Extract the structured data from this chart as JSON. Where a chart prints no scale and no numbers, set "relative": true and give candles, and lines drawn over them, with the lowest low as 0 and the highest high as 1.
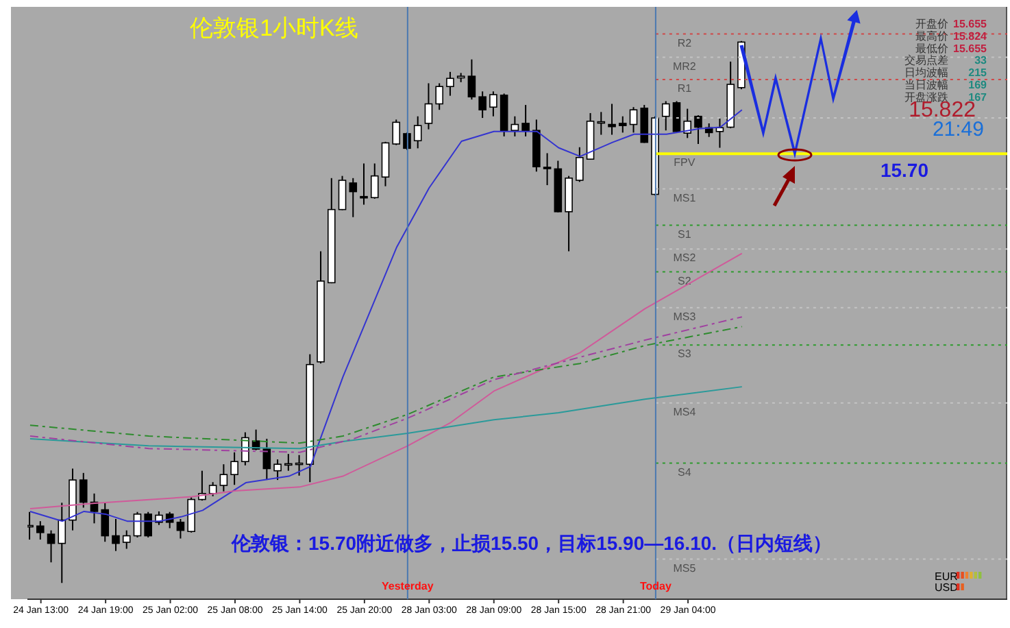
{
  "chart_data": {
    "type": "candlestick",
    "relative": true,
    "title": "伦敦银1小时K线",
    "categories": [
      null,
      "24 Jan 13:00",
      null,
      null,
      null,
      null,
      null,
      "24 Jan 19:00",
      null,
      null,
      null,
      null,
      null,
      "25 Jan 02:00",
      null,
      null,
      null,
      null,
      null,
      "25 Jan 08:00",
      null,
      null,
      null,
      null,
      null,
      "25 Jan 14:00",
      null,
      null,
      null,
      null,
      null,
      "25 Jan 20:00",
      null,
      null,
      null,
      null,
      null,
      "28 Jan 03:00",
      null,
      null,
      null,
      null,
      null,
      "28 Jan 09:00",
      null,
      null,
      null,
      null,
      null,
      "28 Jan 15:00",
      null,
      null,
      null,
      null,
      null,
      "28 Jan 21:00",
      null,
      null,
      null,
      null,
      null,
      "29 Jan 04:00",
      null,
      null,
      null,
      null,
      null
    ],
    "ohlc": [
      [
        0.105,
        0.131,
        0.08,
        0.106
      ],
      [
        0.105,
        0.114,
        0.08,
        0.093
      ],
      [
        0.09,
        0.097,
        0.038,
        0.073
      ],
      [
        0.073,
        0.148,
        0,
        0.116
      ],
      [
        0.116,
        0.211,
        0.097,
        0.19
      ],
      [
        0.19,
        0.203,
        0.139,
        0.149
      ],
      [
        0.149,
        0.165,
        0.11,
        0.132
      ],
      [
        0.135,
        0.148,
        0.076,
        0.087
      ],
      [
        0.087,
        0.118,
        0.059,
        0.073
      ],
      [
        0.075,
        0.097,
        0.063,
        0.087
      ],
      [
        0.087,
        0.131,
        0.084,
        0.127
      ],
      [
        0.127,
        0.131,
        0.084,
        0.087
      ],
      [
        0.112,
        0.132,
        0.107,
        0.125
      ],
      [
        0.127,
        0.131,
        0.101,
        0.112
      ],
      [
        0.112,
        0.118,
        0.082,
        0.097
      ],
      [
        0.095,
        0.158,
        0.093,
        0.154
      ],
      [
        0.154,
        0.207,
        0.152,
        0.165
      ],
      [
        0.165,
        0.186,
        0.16,
        0.18
      ],
      [
        0.18,
        0.219,
        0.169,
        0.2
      ],
      [
        0.2,
        0.241,
        0.181,
        0.224
      ],
      [
        0.224,
        0.278,
        0.217,
        0.268
      ],
      [
        0.262,
        0.283,
        0.245,
        0.247
      ],
      [
        0.247,
        0.266,
        0.19,
        0.211
      ],
      [
        0.207,
        0.228,
        0.19,
        0.219
      ],
      [
        0.219,
        0.238,
        0.207,
        0.22
      ],
      [
        0.219,
        0.236,
        0.198,
        0.221
      ],
      [
        0.219,
        0.422,
        0.186,
        0.403
      ],
      [
        0.408,
        0.612,
        0.405,
        0.557
      ],
      [
        0.554,
        0.747,
        0.553,
        0.689
      ],
      [
        0.689,
        0.751,
        0.688,
        0.743
      ],
      [
        0.738,
        0.747,
        0.675,
        0.722
      ],
      [
        0.713,
        0.774,
        0.698,
        0.711
      ],
      [
        0.711,
        0.774,
        0.709,
        0.751
      ],
      [
        0.749,
        0.814,
        0.732,
        0.812
      ],
      [
        0.81,
        0.855,
        0.808,
        0.85
      ],
      [
        0.829,
        0.831,
        0.799,
        0.802
      ],
      [
        0.816,
        0.861,
        0.802,
        0.844
      ],
      [
        0.848,
        0.922,
        0.837,
        0.884
      ],
      [
        0.884,
        0.922,
        0.873,
        0.916
      ],
      [
        0.916,
        0.943,
        0.899,
        0.931
      ],
      [
        0.932,
        0.941,
        0.924,
        0.935
      ],
      [
        0.935,
        0.966,
        0.892,
        0.897
      ],
      [
        0.897,
        0.907,
        0.858,
        0.873
      ],
      [
        0.878,
        0.907,
        0.861,
        0.901
      ],
      [
        0.9,
        0.903,
        0.824,
        0.835
      ],
      [
        0.835,
        0.861,
        0.824,
        0.846
      ],
      [
        0.848,
        0.882,
        0.824,
        0.835
      ],
      [
        0.835,
        0.855,
        0.759,
        0.768
      ],
      [
        0.767,
        0.793,
        0.734,
        0.765
      ],
      [
        0.764,
        0.779,
        0.684,
        0.685
      ],
      [
        0.685,
        0.751,
        0.612,
        0.747
      ],
      [
        0.743,
        0.804,
        0.74,
        0.785
      ],
      [
        0.782,
        0.867,
        0.781,
        0.852
      ],
      [
        0.85,
        0.869,
        0.827,
        0.851
      ],
      [
        0.846,
        0.884,
        0.827,
        0.842
      ],
      [
        0.848,
        0.861,
        0.831,
        0.844
      ],
      [
        0.846,
        0.878,
        0.831,
        0.873
      ],
      [
        0.876,
        0.882,
        0.812,
        0.813
      ],
      [
        0.717,
        0.861,
        0.715,
        0.858
      ],
      [
        0.861,
        0.889,
        0.835,
        0.884
      ],
      [
        0.886,
        0.889,
        0.831,
        0.833
      ],
      [
        0.83,
        0.875,
        0.821,
        0.852
      ],
      [
        0.861,
        0.863,
        0.81,
        0.841
      ],
      [
        0.84,
        0.848,
        0.823,
        0.831
      ],
      [
        0.833,
        0.857,
        0.803,
        0.84
      ],
      [
        0.841,
        0.962,
        0.839,
        0.92
      ],
      [
        0.914,
        1,
        0.911,
        0.998
      ]
    ],
    "series": [
      {
        "type": "line",
        "color": "#3434d0",
        "line_style": "solid",
        "values": [
          0.132,
          null,
          null,
          0.114,
          null,
          0.132,
          null,
          0.127,
          null,
          0.114,
          null,
          null,
          0.114,
          null,
          0.122,
          null,
          0.134,
          null,
          null,
          null,
          0.185,
          null,
          null,
          null,
          0.197,
          null,
          0.215,
          0.271,
          null,
          0.38,
          null,
          null,
          null,
          null,
          0.62,
          null,
          null,
          0.729,
          null,
          null,
          0.815,
          null,
          null,
          0.833,
          null,
          null,
          null,
          0.833,
          null,
          0.803,
          null,
          0.787,
          null,
          null,
          0.813,
          null,
          0.828,
          null,
          null,
          0.828,
          null,
          null,
          0.838,
          null,
          0.841,
          null,
          0.873
        ]
      },
      {
        "type": "line",
        "color": "#d05a9a",
        "line_style": "solid",
        "values": [
          0.137,
          null,
          null,
          null,
          null,
          null,
          0.147,
          null,
          null,
          null,
          null,
          null,
          null,
          null,
          null,
          0.159,
          null,
          null,
          null,
          0.17,
          null,
          null,
          null,
          null,
          null,
          0.177,
          null,
          null,
          null,
          0.197,
          null,
          null,
          null,
          null,
          null,
          0.253,
          null,
          null,
          null,
          0.296,
          null,
          null,
          null,
          0.354,
          null,
          null,
          null,
          null,
          null,
          null,
          null,
          0.425,
          null,
          null,
          null,
          null,
          null,
          0.506,
          null,
          null,
          null,
          null,
          null,
          null,
          null,
          null,
          0.608
        ]
      },
      {
        "type": "line",
        "color": "#2a9a9a",
        "line_style": "solid",
        "values": [
          0.266,
          null,
          null,
          null,
          null,
          null,
          null,
          null,
          null,
          null,
          null,
          0.253,
          null,
          null,
          null,
          null,
          null,
          null,
          null,
          null,
          null,
          null,
          null,
          null,
          null,
          0.248,
          null,
          null,
          null,
          0.261,
          null,
          null,
          null,
          null,
          null,
          0.276,
          null,
          null,
          null,
          null,
          null,
          null,
          null,
          0.301,
          null,
          null,
          null,
          null,
          null,
          0.314,
          null,
          null,
          null,
          null,
          null,
          null,
          null,
          0.339,
          null,
          null,
          null,
          null,
          null,
          null,
          null,
          null,
          0.362
        ]
      },
      {
        "type": "line",
        "color": "#2e8b2e",
        "line_style": "dashed",
        "values": [
          0.291,
          null,
          null,
          null,
          null,
          null,
          null,
          null,
          null,
          null,
          null,
          0.271,
          null,
          null,
          null,
          null,
          null,
          null,
          null,
          null,
          null,
          null,
          null,
          null,
          null,
          0.258,
          null,
          null,
          null,
          0.271,
          null,
          null,
          null,
          null,
          null,
          0.311,
          null,
          null,
          null,
          null,
          null,
          null,
          null,
          0.38,
          null,
          null,
          null,
          null,
          null,
          null,
          null,
          0.405,
          null,
          null,
          null,
          null,
          null,
          0.438,
          null,
          null,
          null,
          null,
          null,
          null,
          null,
          null,
          0.473
        ]
      },
      {
        "type": "line",
        "color": "#a040a0",
        "line_style": "dashed",
        "values": [
          0.271,
          null,
          null,
          null,
          null,
          null,
          null,
          null,
          null,
          null,
          null,
          0.248,
          null,
          null,
          null,
          null,
          null,
          null,
          null,
          null,
          null,
          null,
          null,
          null,
          null,
          0.241,
          null,
          null,
          null,
          null,
          0.266,
          null,
          null,
          null,
          null,
          0.304,
          null,
          null,
          null,
          null,
          null,
          null,
          null,
          0.375,
          null,
          null,
          null,
          null,
          null,
          null,
          null,
          null,
          null,
          null,
          null,
          null,
          null,
          0.448,
          null,
          null,
          null,
          null,
          null,
          null,
          null,
          null,
          0.491
        ]
      }
    ],
    "ref_lines": [
      {
        "axis": "y",
        "value": 1.013,
        "label": "R2",
        "color": "#d04848",
        "line_style": "dotted"
      },
      {
        "axis": "y",
        "value": 0.97,
        "label": "MR2",
        "color": "#c4c4c4",
        "line_style": "dotted"
      },
      {
        "axis": "y",
        "value": 0.929,
        "label": "R1",
        "color": "#d04848",
        "line_style": "dotted"
      },
      {
        "axis": "y",
        "value": 0.858,
        "label": null,
        "color": "#c4c4c4",
        "line_style": "dotted"
      },
      {
        "axis": "y",
        "value": 0.792,
        "label": "FPV",
        "color": "#ffff00",
        "line_style": "solid"
      },
      {
        "axis": "y",
        "value": 0.727,
        "label": "MS1",
        "color": "#c4c4c4",
        "line_style": "dotted"
      },
      {
        "axis": "y",
        "value": 0.66,
        "label": "S1",
        "color": "#2e9a2e",
        "line_style": "dotted"
      },
      {
        "axis": "y",
        "value": 0.616,
        "label": "MS2",
        "color": "#c4c4c4",
        "line_style": "dotted"
      },
      {
        "axis": "y",
        "value": 0.574,
        "label": "S2",
        "color": "#2e9a2e",
        "line_style": "dotted"
      },
      {
        "axis": "y",
        "value": 0.508,
        "label": "MS3",
        "color": "#c4c4c4",
        "line_style": "dotted"
      },
      {
        "axis": "y",
        "value": 0.439,
        "label": "S3",
        "color": "#2e9a2e",
        "line_style": "dotted"
      },
      {
        "axis": "y",
        "value": 0.332,
        "label": "MS4",
        "color": "#c4c4c4",
        "line_style": "dotted"
      },
      {
        "axis": "y",
        "value": 0.221,
        "label": "S4",
        "color": "#2e9a2e",
        "line_style": "dotted"
      },
      {
        "axis": "y",
        "value": 0.044,
        "label": "MS5",
        "color": "#c4c4c4",
        "line_style": "dotted"
      }
    ],
    "annotations": [
      "开盘价",
      "15.655",
      "最高价",
      "15.824",
      "最低价",
      "15.655",
      "交易点差",
      "33",
      "日均波幅",
      "215",
      "当日波幅",
      "169",
      "开盘涨跌",
      "167",
      "15.822",
      "21:49",
      {
        "text": "15.70",
        "y": 0.792
      },
      "伦敦银：15.70附近做多，止损15.50，目标15.90—16.10.（日内短线）",
      "EUR",
      "USD",
      "Yesterday",
      "Today"
    ],
    "grid": false,
    "legend": false,
    "marker": "none"
  }
}
